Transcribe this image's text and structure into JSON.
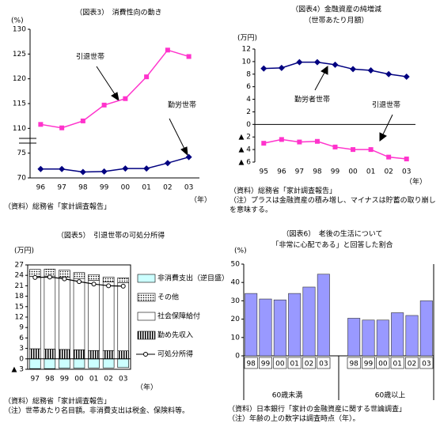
{
  "chart_data": [
    {
      "type": "line",
      "title": "（図表3）　消費性向の動き",
      "y_label": "(%)",
      "x_label": "（年）",
      "categories": [
        "96",
        "97",
        "98",
        "99",
        "00",
        "01",
        "02",
        "03"
      ],
      "series": [
        {
          "name": "引退世帯",
          "color": "#ff33cc",
          "marker": "square",
          "values": [
            110.8,
            110.1,
            111.5,
            114.7,
            116.0,
            120.4,
            125.8,
            124.5
          ]
        },
        {
          "name": "勤労世帯",
          "color": "#000080",
          "marker": "diamond",
          "values": [
            71.8,
            71.8,
            71.2,
            71.3,
            71.9,
            71.9,
            73.0,
            74.2
          ]
        }
      ],
      "ylim": [
        70,
        130
      ],
      "yticks": [
        70,
        75,
        110,
        115,
        120,
        125,
        130
      ],
      "ybreak": [
        75,
        110
      ],
      "annotations": [
        "引退世帯",
        "勤労世帯"
      ],
      "notes": [
        "（資料）総務省「家計調査報告」"
      ]
    },
    {
      "type": "line",
      "title": [
        "（図表4）金融資産の純増減",
        "（世帯あたり月額）"
      ],
      "y_label": "(万円)",
      "x_label": "（年）",
      "categories": [
        "95",
        "96",
        "97",
        "98",
        "99",
        "00",
        "01",
        "02",
        "03"
      ],
      "series": [
        {
          "name": "勤労者世帯",
          "color": "#000080",
          "marker": "diamond",
          "values": [
            8.9,
            9.0,
            9.9,
            9.9,
            9.5,
            8.8,
            8.6,
            8.0,
            7.6
          ]
        },
        {
          "name": "引退世帯",
          "color": "#ff33cc",
          "marker": "square",
          "values": [
            -3.0,
            -2.4,
            -2.8,
            -2.7,
            -3.6,
            -4.0,
            -4.0,
            -5.2,
            -5.5
          ]
        }
      ],
      "ylim": [
        -6,
        12
      ],
      "yticks": [
        {
          "value": -6,
          "label": "▲ 6"
        },
        {
          "value": -4,
          "label": "▲ 4"
        },
        {
          "value": -2,
          "label": "▲ 2"
        },
        0,
        2,
        4,
        6,
        8,
        10,
        12
      ],
      "zero_line": true,
      "annotations": [
        "勤労者世帯",
        "引退世帯"
      ],
      "notes": [
        "（資料）総務省「家計調査報告」",
        "（注）プラスは金融資産の積み増し、マイナスは貯蓄の取り崩しを意味する。"
      ]
    },
    {
      "type": "stacked_bar",
      "title": "（図表5）　引退世帯の可処分所得",
      "y_label": "(万円)",
      "x_label": "（年）",
      "categories": [
        "97",
        "98",
        "99",
        "00",
        "01",
        "02",
        "03"
      ],
      "series": [
        {
          "name": "非消費支出（逆目盛）",
          "color": "#ccffff",
          "values": [
            -2.8,
            -2.8,
            -2.7,
            -2.7,
            -2.6,
            -2.6,
            -2.5
          ]
        },
        {
          "name": "その他",
          "color": "#ffffff",
          "pattern": "dots",
          "values": [
            2.0,
            2.0,
            2.0,
            1.7,
            1.6,
            1.4,
            1.4
          ]
        },
        {
          "name": "社会保障給付",
          "color": "#ffffff",
          "values": [
            20.8,
            21.0,
            20.8,
            20.5,
            20.2,
            19.7,
            19.6
          ]
        },
        {
          "name": "勤め先収入",
          "color": "#ffffff",
          "pattern": "vstripes",
          "values": [
            2.9,
            2.8,
            2.7,
            2.6,
            2.4,
            2.4,
            2.3
          ]
        },
        {
          "name": "可処分所得",
          "color": "#000000",
          "kind": "line",
          "values": [
            23.4,
            23.5,
            23.0,
            22.2,
            21.5,
            21.0,
            20.9
          ]
        }
      ],
      "stack_order": [
        3,
        2,
        1
      ],
      "legend_order": [
        0,
        1,
        2,
        3,
        4
      ],
      "ylim": [
        -3,
        27
      ],
      "yticks": [
        {
          "value": -3,
          "label": "▲ 3"
        },
        0,
        3,
        6,
        9,
        12,
        15,
        18,
        21,
        24,
        27
      ],
      "zero_line": true,
      "notes": [
        "（資料）総務省「家計調査報告」",
        "（注）世帯あたり名目額。非消費支出は税金、保険料等。"
      ]
    },
    {
      "type": "bar",
      "title": [
        "（図表6）　老後の生活について",
        "「非常に心配である」と回答した割合"
      ],
      "y_label": "(%)",
      "categories": [
        "98",
        "99",
        "00",
        "01",
        "02",
        "03",
        "98",
        "99",
        "00",
        "01",
        "02",
        "03"
      ],
      "group_labels": [
        "60歳未満",
        "60歳以上"
      ],
      "values": [
        34,
        31,
        30.5,
        34,
        37.5,
        44.5,
        20.5,
        19.5,
        19.5,
        23.5,
        22,
        30
      ],
      "color": "#9999ff",
      "ylim": [
        0,
        50
      ],
      "yticks": [
        0,
        10,
        20,
        30,
        40,
        50
      ],
      "notes": [
        "（資料）日本銀行「家計の金融資産に関する世論調査」",
        "（注）年齢の上の数字は調査時点（年）。"
      ]
    }
  ]
}
